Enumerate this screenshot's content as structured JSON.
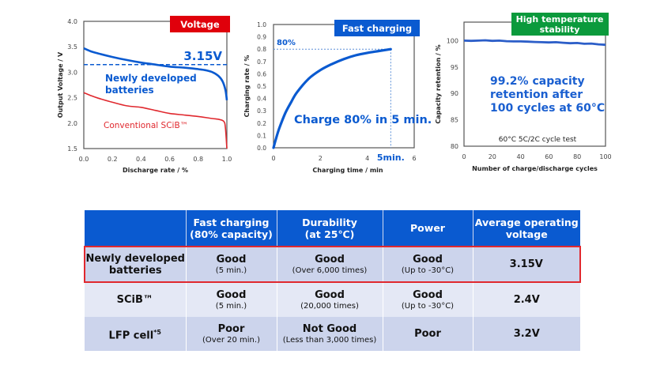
{
  "chart_data": [
    {
      "type": "line",
      "badge": "Voltage",
      "badge_color": "#e0000b",
      "xlabel": "Discharge rate / %",
      "ylabel": "Output Voltage / V",
      "xlim": [
        0,
        1.0
      ],
      "ylim": [
        1.5,
        4.0
      ],
      "xticks": [
        "0.0",
        "0.2",
        "0.4",
        "0.6",
        "0.8",
        "1.0"
      ],
      "yticks": [
        "1.5",
        "2.0",
        "2.5",
        "3.0",
        "3.5",
        "4.0"
      ],
      "reference_line": {
        "y": 3.15,
        "label": "3.15V",
        "style": "dashed",
        "color": "#0a5ad0"
      },
      "series": [
        {
          "name": "Newly developed batteries",
          "color": "#0a5ad0",
          "x": [
            0.0,
            0.05,
            0.1,
            0.2,
            0.3,
            0.4,
            0.5,
            0.6,
            0.7,
            0.8,
            0.85,
            0.9,
            0.94,
            0.97,
            0.99,
            1.0
          ],
          "y": [
            3.47,
            3.41,
            3.37,
            3.3,
            3.24,
            3.19,
            3.15,
            3.11,
            3.09,
            3.06,
            3.04,
            3.0,
            2.93,
            2.82,
            2.65,
            2.45
          ]
        },
        {
          "name": "Conventional SCiB™",
          "color": "#e0282e",
          "x": [
            0.0,
            0.05,
            0.1,
            0.2,
            0.3,
            0.4,
            0.5,
            0.6,
            0.7,
            0.8,
            0.9,
            0.95,
            0.98,
            0.99,
            1.0
          ],
          "y": [
            2.6,
            2.54,
            2.49,
            2.41,
            2.34,
            2.31,
            2.25,
            2.19,
            2.16,
            2.13,
            2.09,
            2.07,
            2.03,
            1.9,
            1.5
          ]
        }
      ],
      "annotations": [
        "3.15V",
        "Newly developed",
        "batteries",
        "Conventional SCiB™"
      ]
    },
    {
      "type": "line",
      "badge": "Fast charging",
      "badge_color": "#0a5ad0",
      "xlabel": "Charging time / min",
      "ylabel": "Charging rate / %",
      "xlim": [
        0,
        6
      ],
      "ylim": [
        0.0,
        1.0
      ],
      "xticks": [
        "0",
        "2",
        "4",
        "6"
      ],
      "yticks": [
        "0.0",
        "0.1",
        "0.2",
        "0.3",
        "0.4",
        "0.5",
        "0.6",
        "0.7",
        "0.8",
        "0.9",
        "1.0"
      ],
      "reference_lines": {
        "y": 0.8,
        "y_label": "80%",
        "x": 5,
        "x_label": "5min."
      },
      "series": [
        {
          "name": "Charging curve",
          "color": "#0a5ad0",
          "x": [
            0,
            0.1,
            0.25,
            0.5,
            0.75,
            1.0,
            1.5,
            2.0,
            2.5,
            3.0,
            3.5,
            4.0,
            4.5,
            5.0
          ],
          "y": [
            0.0,
            0.07,
            0.16,
            0.28,
            0.37,
            0.45,
            0.56,
            0.63,
            0.68,
            0.72,
            0.75,
            0.77,
            0.785,
            0.8
          ]
        }
      ],
      "annotations": [
        "Charge 80% in 5 min."
      ]
    },
    {
      "type": "line",
      "badge": "High temperature stability",
      "badge_lines": [
        "High temperature",
        "stability"
      ],
      "badge_color": "#0b9a3c",
      "xlabel": "Number of charge/discharge cycles",
      "ylabel": "Capacity retention / %",
      "xlim": [
        0,
        100
      ],
      "ylim": [
        80,
        103.5
      ],
      "xticks": [
        "0",
        "20",
        "40",
        "60",
        "80",
        "100"
      ],
      "yticks": [
        "80",
        "85",
        "90",
        "95",
        "100"
      ],
      "series": [
        {
          "name": "Capacity retention",
          "color": "#2c5ec8",
          "x": [
            0,
            5,
            10,
            15,
            20,
            25,
            30,
            35,
            40,
            45,
            50,
            55,
            60,
            65,
            70,
            75,
            80,
            85,
            90,
            95,
            100
          ],
          "y": [
            100.0,
            99.95,
            100.0,
            100.05,
            99.95,
            100.0,
            99.9,
            99.85,
            99.85,
            99.8,
            99.75,
            99.7,
            99.65,
            99.7,
            99.6,
            99.5,
            99.55,
            99.4,
            99.45,
            99.3,
            99.2
          ]
        }
      ],
      "annotations": [
        "99.2% capacity",
        "retention after",
        "100 cycles at 60°C",
        "60°C 5C/2C cycle test"
      ]
    }
  ],
  "table": {
    "headers": [
      "",
      "Fast charging\n(80% capacity)",
      "Durability\n(at 25℃)",
      "Power",
      "Average operating\nvoltage"
    ],
    "header_lines": [
      [],
      [
        "Fast charging",
        "(80% capacity)"
      ],
      [
        "Durability",
        "(at 25℃)"
      ],
      [
        "Power"
      ],
      [
        "Average operating",
        "voltage"
      ]
    ],
    "rows": [
      {
        "highlighted": true,
        "name_lines": [
          "Newly developed",
          "batteries"
        ],
        "fast_charging": {
          "rating": "Good",
          "detail": "(5 min.)"
        },
        "durability": {
          "rating": "Good",
          "detail": "(Over 6,000 times)"
        },
        "power": {
          "rating": "Good",
          "detail": "(Up to -30°C)"
        },
        "voltage": "3.15V"
      },
      {
        "highlighted": false,
        "name_lines": [
          "SCiB™"
        ],
        "fast_charging": {
          "rating": "Good",
          "detail": "(5 min.)"
        },
        "durability": {
          "rating": "Good",
          "detail": "(20,000 times)"
        },
        "power": {
          "rating": "Good",
          "detail": "(Up to -30°C)"
        },
        "voltage": "2.4V"
      },
      {
        "highlighted": false,
        "name_lines": [
          "LFP cell*5"
        ],
        "fast_charging": {
          "rating": "Poor",
          "detail": "(Over 20 min.)"
        },
        "durability": {
          "rating": "Not Good",
          "detail": "(Less than 3,000 times)"
        },
        "power": {
          "rating": "Poor",
          "detail": ""
        },
        "voltage": "3.2V"
      }
    ]
  }
}
